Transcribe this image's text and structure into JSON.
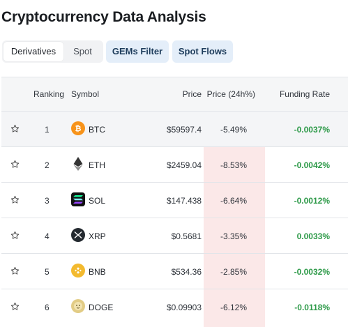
{
  "page": {
    "title": "Cryptocurrency Data Analysis"
  },
  "segment": {
    "options": [
      "Derivatives",
      "Spot"
    ],
    "selected": "Derivatives"
  },
  "buttons": {
    "gems_filter": "GEMs Filter",
    "spot_flows": "Spot Flows"
  },
  "table": {
    "headers": {
      "ranking": "Ranking",
      "symbol": "Symbol",
      "price": "Price",
      "change": "Price (24h%)",
      "funding": "Funding Rate"
    },
    "rows": [
      {
        "rank": "1",
        "symbol": "BTC",
        "price": "$59597.4",
        "change": "-5.49%",
        "funding": "-0.0037%",
        "icon": "btc-icon"
      },
      {
        "rank": "2",
        "symbol": "ETH",
        "price": "$2459.04",
        "change": "-8.53%",
        "funding": "-0.0042%",
        "icon": "eth-icon"
      },
      {
        "rank": "3",
        "symbol": "SOL",
        "price": "$147.438",
        "change": "-6.64%",
        "funding": "-0.0012%",
        "icon": "sol-icon"
      },
      {
        "rank": "4",
        "symbol": "XRP",
        "price": "$0.5681",
        "change": "-3.35%",
        "funding": "0.0033%",
        "icon": "xrp-icon"
      },
      {
        "rank": "5",
        "symbol": "BNB",
        "price": "$534.36",
        "change": "-2.85%",
        "funding": "-0.0032%",
        "icon": "bnb-icon"
      },
      {
        "rank": "6",
        "symbol": "DOGE",
        "price": "$0.09903",
        "change": "-6.12%",
        "funding": "-0.0118%",
        "icon": "doge-icon"
      }
    ]
  },
  "colors": {
    "positive": "#2e9a49",
    "negative_column": "#fbe8e8",
    "button_bg": "#e4eef9"
  }
}
